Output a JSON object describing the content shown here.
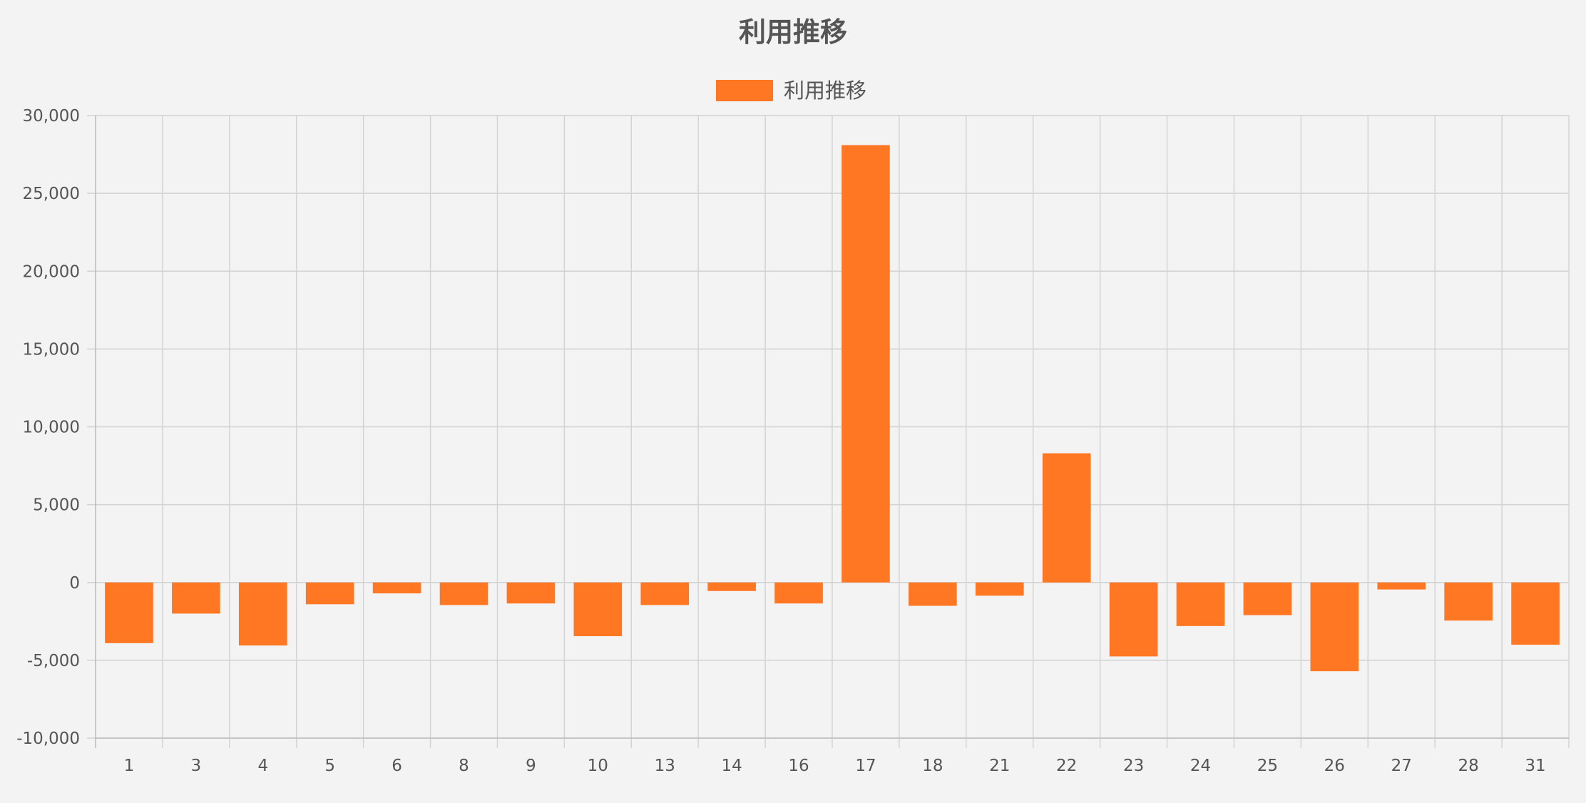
{
  "chart_data": {
    "type": "bar",
    "title": "利用推移",
    "legend": {
      "label": "利用推移",
      "position": "top"
    },
    "categories": [
      "1",
      "3",
      "4",
      "5",
      "6",
      "8",
      "9",
      "10",
      "13",
      "14",
      "16",
      "17",
      "18",
      "21",
      "22",
      "23",
      "24",
      "25",
      "26",
      "27",
      "28",
      "31"
    ],
    "series": [
      {
        "name": "利用推移",
        "values": [
          -3900,
          -2000,
          -4050,
          -1400,
          -700,
          -1450,
          -1350,
          -3450,
          -1450,
          -550,
          -1350,
          28100,
          -1500,
          -850,
          8300,
          -4750,
          -2800,
          -2100,
          -5700,
          -450,
          -2450,
          -4000
        ],
        "color": "#ff7723"
      }
    ],
    "ylim": [
      -10000,
      30000
    ],
    "yticks": [
      30000,
      25000,
      20000,
      15000,
      10000,
      5000,
      0,
      -5000,
      -10000
    ],
    "ytick_labels": [
      "30,000",
      "25,000",
      "20,000",
      "15,000",
      "10,000",
      "5,000",
      "0",
      "-5,000",
      "-10,000"
    ],
    "grid": true,
    "colors": {
      "bar": "#ff7723",
      "grid": "#d2d2d2",
      "text": "#555555",
      "background": "#f3f3f3"
    }
  }
}
